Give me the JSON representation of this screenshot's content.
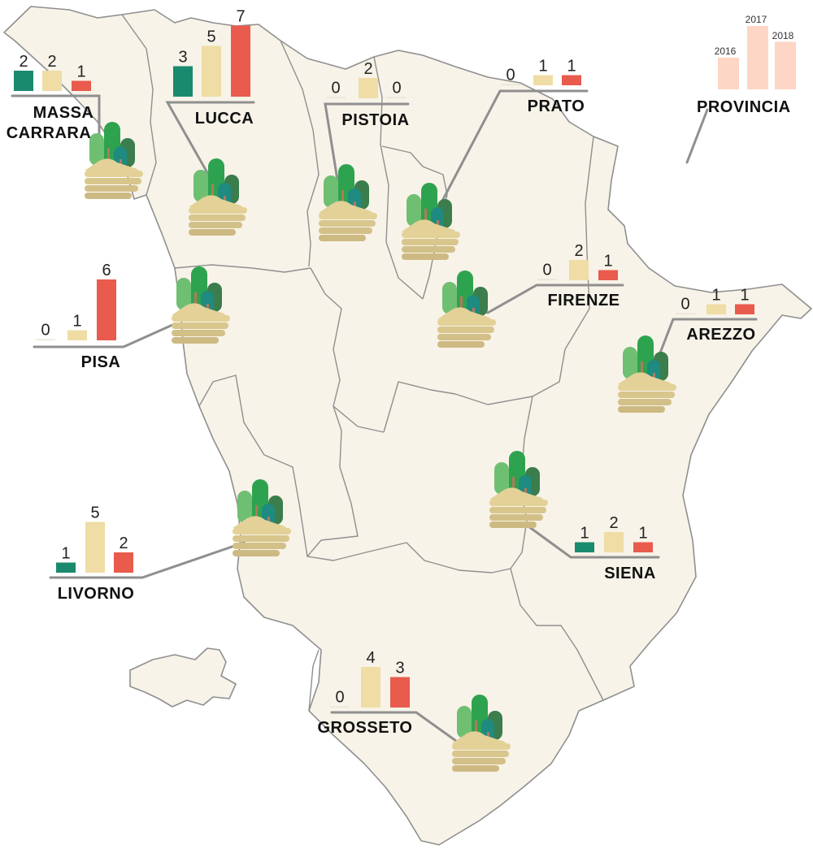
{
  "legend": {
    "title": "PROVINCIA",
    "years": [
      "2016",
      "2017",
      "2018"
    ],
    "values": [
      2,
      4,
      3
    ],
    "colors": [
      "#fdd6c5",
      "#fdd6c5",
      "#fdd6c5"
    ]
  },
  "chart_data": {
    "type": "bar",
    "series_colors": {
      "2016": "#1a8a6e",
      "2017": "#efdda5",
      "2018": "#e85b4d"
    },
    "provinces": [
      {
        "name_lines": [
          "MASSA",
          "CARRARA"
        ],
        "values": [
          2,
          2,
          1
        ]
      },
      {
        "name_lines": [
          "LUCCA"
        ],
        "values": [
          3,
          5,
          7
        ]
      },
      {
        "name_lines": [
          "PISTOIA"
        ],
        "values": [
          0,
          2,
          0
        ]
      },
      {
        "name_lines": [
          "PRATO"
        ],
        "values": [
          0,
          1,
          1
        ]
      },
      {
        "name_lines": [
          "PISA"
        ],
        "values": [
          0,
          1,
          6
        ]
      },
      {
        "name_lines": [
          "FIRENZE"
        ],
        "values": [
          0,
          2,
          1
        ]
      },
      {
        "name_lines": [
          "AREZZO"
        ],
        "values": [
          0,
          1,
          1
        ]
      },
      {
        "name_lines": [
          "LIVORNO"
        ],
        "values": [
          1,
          5,
          2
        ]
      },
      {
        "name_lines": [
          "SIENA"
        ],
        "values": [
          1,
          2,
          1
        ]
      },
      {
        "name_lines": [
          "GROSSETO"
        ],
        "values": [
          0,
          4,
          3
        ]
      }
    ]
  }
}
